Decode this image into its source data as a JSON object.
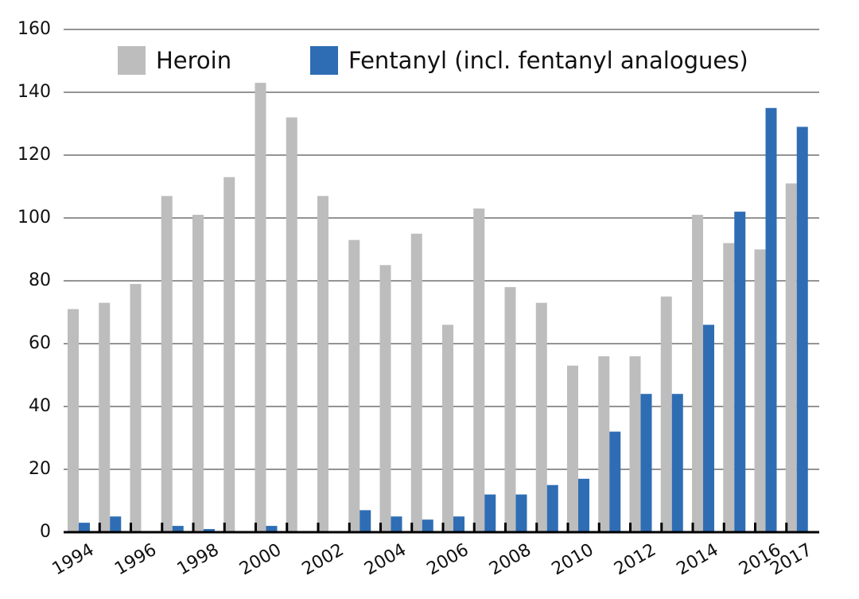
{
  "chart_data": {
    "type": "bar",
    "categories": [
      "1994",
      null,
      "1996",
      null,
      "1998",
      null,
      "2000",
      null,
      "2002",
      null,
      "2004",
      null,
      "2006",
      null,
      "2008",
      null,
      "2010",
      null,
      "2012",
      null,
      "2014",
      null,
      "2016",
      "2017"
    ],
    "series": [
      {
        "name": "Heroin",
        "color": "#bdbdbd",
        "values": [
          71,
          73,
          79,
          107,
          101,
          113,
          143,
          132,
          107,
          93,
          85,
          95,
          66,
          103,
          78,
          73,
          53,
          56,
          56,
          75,
          101,
          92,
          90,
          111
        ]
      },
      {
        "name": "Fentanyl (incl. fentanyl analogues)",
        "color": "#2e6db4",
        "values": [
          3,
          5,
          0,
          2,
          1,
          0,
          2,
          0,
          0,
          7,
          5,
          4,
          5,
          12,
          12,
          15,
          17,
          32,
          44,
          44,
          66,
          102,
          135,
          129
        ]
      }
    ],
    "ylim": [
      0,
      160
    ],
    "yticks": [
      0,
      20,
      40,
      60,
      80,
      100,
      120,
      140,
      160
    ],
    "grid": true,
    "legend": "top"
  }
}
